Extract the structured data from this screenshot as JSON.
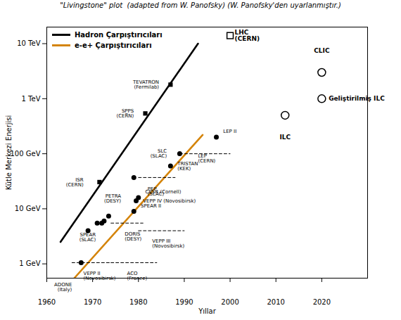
{
  "chart_data": {
    "type": "line",
    "title": "\"Livingstone\" plot  (adapted from W. Panofsky) (W. Panofsky'den uyarlanmıştır.)",
    "x_label": "Yıllar",
    "y_label": "Kütle Merkezi Enerjisi",
    "xlim": [
      1960,
      2030
    ],
    "xticks": [
      1960,
      1970,
      1980,
      1990,
      2000,
      2010,
      2020
    ],
    "ylim": [
      0.55,
      20000
    ],
    "yticks": [
      {
        "value": 1,
        "label": "1 GeV"
      },
      {
        "value": 10,
        "label": "10 GeV"
      },
      {
        "value": 100,
        "label": "100 GeV"
      },
      {
        "value": 1000,
        "label": "1 TeV"
      },
      {
        "value": 10000,
        "label": "10 TeV"
      }
    ],
    "log": "y",
    "legend": "upper left",
    "series": [
      {
        "name": "Hadron Çarpıştırıcıları",
        "color": "black",
        "x": [
          1963,
          1993
        ],
        "values": [
          2.5,
          10000
        ]
      },
      {
        "name": "e-e+ Çarpıştırıcıları",
        "color": "#D4840A",
        "x": [
          1966,
          1994
        ],
        "values": [
          0.55,
          220
        ]
      }
    ],
    "marker_groups": [
      {
        "marker": "square",
        "color": "black",
        "points": [
          {
            "x": 1971.5,
            "y": 30.6,
            "label": "ISR\n(CERN)",
            "label_x": 1968,
            "label_y": 30.6
          },
          {
            "x": 1981.5,
            "y": 540,
            "label": "SP̲PS\n(CERN)",
            "label_x": 1979,
            "label_y": 540
          },
          {
            "x": 1987,
            "y": 1800,
            "label": "TEVATRON\n(Fermilab)",
            "label_x": 1984.5,
            "label_y": 1800
          }
        ]
      },
      {
        "marker": "square-open",
        "color": "black",
        "points": [
          {
            "x": 2000,
            "y": 14000,
            "label": "LHC\n(CERN)",
            "label_x": 2001,
            "label_y": 14000
          }
        ]
      },
      {
        "marker": "circle",
        "color": "black",
        "points": [
          {
            "x": 1967.5,
            "y": 1.05,
            "label": "ADONE\n(Italy)",
            "label_x": 1965.5,
            "label_y": 0.37255
          },
          {
            "x": 1969,
            "y": 4.0
          },
          {
            "x": 1971,
            "y": 5.5
          },
          {
            "x": 1972,
            "y": 5.5
          },
          {
            "x": 1972.5,
            "y": 6.0
          },
          {
            "x": 1973.5,
            "y": 7.4,
            "label": "SPEAR\n(SLAC)",
            "label_x": 1970.7,
            "label_y": 3.0848
          },
          {
            "x": 1979,
            "y": 9.0,
            "label": "SPEAR II",
            "label_x": 1980.5,
            "label_y": 11.33
          },
          {
            "x": 1979.5,
            "y": 14,
            "label": "VEPP IV (Novosibirsk)",
            "label_x": 1981,
            "label_y": 14
          },
          {
            "x": 1980,
            "y": 16,
            "label": "CESR (Cornell)",
            "label_x": 1981.5,
            "label_y": 20.143
          },
          {
            "x": 1979,
            "y": 37,
            "label": "PETRA\n(DESY)",
            "label_x": 1976.2,
            "label_y": 15.424
          },
          {
            "x": 1987,
            "y": 60,
            "label": "TRISTAN\n(KEK)",
            "label_x": 1988.5,
            "label_y": 60
          },
          {
            "x": 1989,
            "y": 100,
            "label": "SLC\n(SLAC)",
            "label_x": 1986.2,
            "label_y": 100
          },
          {
            "x": 1997,
            "y": 200,
            "label": "LEP II",
            "label_x": 1998.5,
            "label_y": 251.79
          }
        ]
      },
      {
        "marker": "circle-open",
        "color": "black",
        "points": [
          {
            "x": 2012,
            "y": 500,
            "label": "ILC",
            "label_x": 2012,
            "label_y": 199.05
          },
          {
            "x": 2020,
            "y": 3000,
            "label": "CLIC",
            "label_x": 2020,
            "label_y": 7535.7
          },
          {
            "x": 2020,
            "y": 1000,
            "label": "Geliştirilmiş ILC",
            "label_x": 2021.5,
            "label_y": 1000
          }
        ]
      }
    ],
    "segments": [
      {
        "x": [
          1965.5,
          1974
        ],
        "values": [
          1.05,
          1.05
        ],
        "line_style": "dashed",
        "color": "black",
        "label": "VEPP II\n(Novosibirsk)",
        "label_x": 1968,
        "label_y": 0.72
      },
      {
        "x": [
          1974,
          1984
        ],
        "values": [
          1.05,
          1.05
        ],
        "line_style": "dashed",
        "color": "black",
        "label": "ACO\n(France)",
        "label_x": 1977.5,
        "label_y": 0.72
      },
      {
        "x": [
          1974,
          1981
        ],
        "values": [
          5.5,
          5.5
        ],
        "line_style": "dashed",
        "color": "black",
        "label": "DORIS\n(DESY)",
        "label_x": 1977,
        "label_y": 3.8
      },
      {
        "x": [
          1980,
          1990
        ],
        "values": [
          4.0,
          4.0
        ],
        "line_style": "dashed",
        "color": "black",
        "label": "VEPP III\n(Novosibirsk)",
        "label_x": 1983,
        "label_y": 2.8
      },
      {
        "x": [
          1980,
          1988
        ],
        "values": [
          37,
          37
        ],
        "line_style": "dashed",
        "color": "black",
        "label": "PEP\n(SLAC)",
        "label_x": 1982,
        "label_y": 25
      },
      {
        "x": [
          1989,
          2000
        ],
        "values": [
          100,
          100
        ],
        "line_style": "dashed",
        "color": "black",
        "label": "LEP\n(CERN)",
        "label_x": 1993,
        "label_y": 100
      }
    ]
  }
}
